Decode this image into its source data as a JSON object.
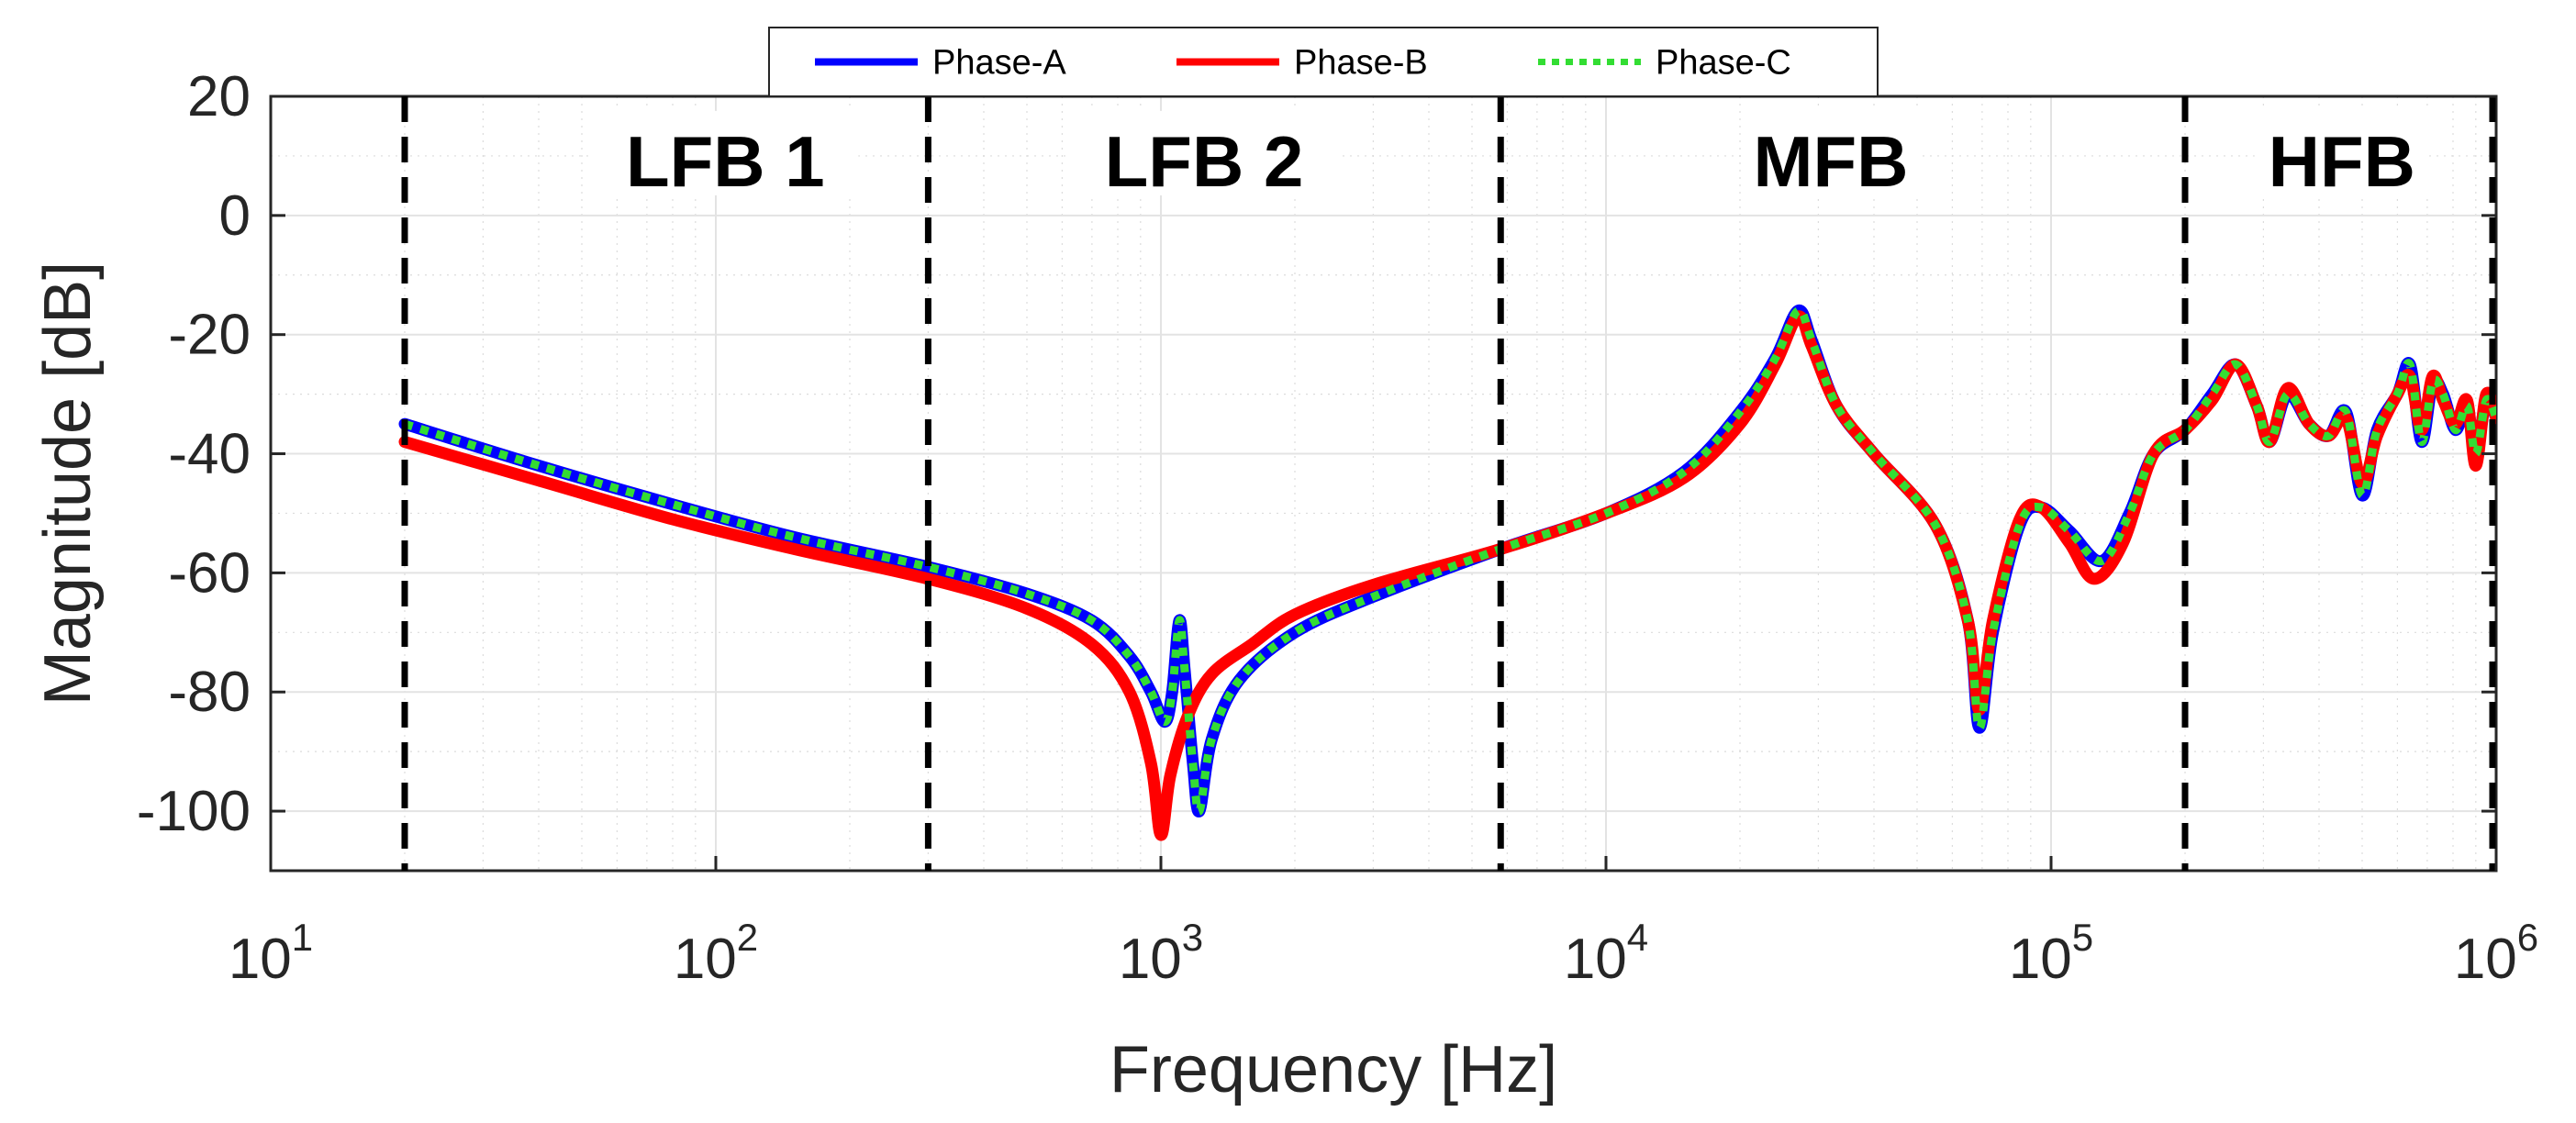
{
  "chart_data": {
    "type": "line",
    "title": "",
    "xlabel": "Frequency [Hz]",
    "ylabel": "Magnitude [dB]",
    "xscale": "log",
    "xlim": [
      10,
      1000000
    ],
    "ylim": [
      -110,
      20
    ],
    "grid": true,
    "legend_position": "top-center",
    "x_ticks": [
      {
        "value": 10,
        "base": "10",
        "exp": "1"
      },
      {
        "value": 100,
        "base": "10",
        "exp": "2"
      },
      {
        "value": 1000,
        "base": "10",
        "exp": "3"
      },
      {
        "value": 10000,
        "base": "10",
        "exp": "4"
      },
      {
        "value": 100000,
        "base": "10",
        "exp": "5"
      },
      {
        "value": 1000000,
        "base": "10",
        "exp": "6"
      }
    ],
    "y_ticks": [
      {
        "value": 20,
        "label": "20"
      },
      {
        "value": 0,
        "label": "0"
      },
      {
        "value": -20,
        "label": "-20"
      },
      {
        "value": -40,
        "label": "-40"
      },
      {
        "value": -60,
        "label": "-60"
      },
      {
        "value": -80,
        "label": "-80"
      },
      {
        "value": -100,
        "label": "-100"
      }
    ],
    "band_boundaries_hz": [
      20,
      300,
      5800,
      200000,
      1000000
    ],
    "bands": [
      {
        "label": "LFB 1",
        "x_center": 105,
        "y": 8
      },
      {
        "label": "LFB 2",
        "x_center": 1250,
        "y": 8
      },
      {
        "label": "MFB",
        "x_center": 32000,
        "y": 8
      },
      {
        "label": "HFB",
        "x_center": 450000,
        "y": 8
      }
    ],
    "series": [
      {
        "name": "Phase-A",
        "color": "#0000ff",
        "style": "solid",
        "points": [
          [
            20,
            -35
          ],
          [
            40,
            -42
          ],
          [
            80,
            -48.5
          ],
          [
            150,
            -54
          ],
          [
            300,
            -59
          ],
          [
            500,
            -63.5
          ],
          [
            700,
            -68
          ],
          [
            850,
            -74
          ],
          [
            950,
            -80
          ],
          [
            1020,
            -85
          ],
          [
            1060,
            -80
          ],
          [
            1100,
            -68
          ],
          [
            1130,
            -76
          ],
          [
            1180,
            -92
          ],
          [
            1220,
            -100
          ],
          [
            1300,
            -88
          ],
          [
            1500,
            -78
          ],
          [
            2000,
            -70
          ],
          [
            3000,
            -64
          ],
          [
            5800,
            -56
          ],
          [
            10000,
            -50
          ],
          [
            15000,
            -43
          ],
          [
            20000,
            -33
          ],
          [
            24000,
            -24
          ],
          [
            27000,
            -16
          ],
          [
            29000,
            -21
          ],
          [
            33000,
            -32
          ],
          [
            40000,
            -40
          ],
          [
            55000,
            -52
          ],
          [
            65000,
            -68
          ],
          [
            69000,
            -86
          ],
          [
            74000,
            -70
          ],
          [
            85000,
            -52
          ],
          [
            95000,
            -49
          ],
          [
            110000,
            -53
          ],
          [
            130000,
            -58
          ],
          [
            150000,
            -50
          ],
          [
            170000,
            -40
          ],
          [
            200000,
            -36
          ],
          [
            230000,
            -30
          ],
          [
            260000,
            -25
          ],
          [
            290000,
            -32
          ],
          [
            310000,
            -38
          ],
          [
            340000,
            -30
          ],
          [
            380000,
            -35
          ],
          [
            420000,
            -37
          ],
          [
            460000,
            -33
          ],
          [
            500000,
            -47
          ],
          [
            540000,
            -36
          ],
          [
            600000,
            -30
          ],
          [
            640000,
            -25
          ],
          [
            680000,
            -38
          ],
          [
            720000,
            -28
          ],
          [
            760000,
            -30
          ],
          [
            810000,
            -36
          ],
          [
            860000,
            -32
          ],
          [
            900000,
            -40
          ],
          [
            950000,
            -31
          ],
          [
            1000000,
            -34
          ]
        ]
      },
      {
        "name": "Phase-B",
        "color": "#ff0000",
        "style": "solid",
        "points": [
          [
            20,
            -38
          ],
          [
            40,
            -44.5
          ],
          [
            80,
            -51
          ],
          [
            150,
            -56
          ],
          [
            300,
            -61
          ],
          [
            500,
            -66
          ],
          [
            700,
            -72
          ],
          [
            850,
            -80
          ],
          [
            950,
            -92
          ],
          [
            1000,
            -104
          ],
          [
            1050,
            -94
          ],
          [
            1150,
            -84
          ],
          [
            1300,
            -77
          ],
          [
            1600,
            -72
          ],
          [
            2000,
            -67
          ],
          [
            3000,
            -62
          ],
          [
            5800,
            -56
          ],
          [
            10000,
            -50
          ],
          [
            15000,
            -44
          ],
          [
            20000,
            -35
          ],
          [
            24000,
            -25
          ],
          [
            27000,
            -17
          ],
          [
            29000,
            -22
          ],
          [
            33000,
            -32
          ],
          [
            40000,
            -40
          ],
          [
            55000,
            -52
          ],
          [
            65000,
            -68
          ],
          [
            69000,
            -83
          ],
          [
            74000,
            -68
          ],
          [
            85000,
            -51
          ],
          [
            95000,
            -49
          ],
          [
            110000,
            -55
          ],
          [
            125000,
            -61
          ],
          [
            145000,
            -55
          ],
          [
            170000,
            -40
          ],
          [
            200000,
            -36
          ],
          [
            230000,
            -31
          ],
          [
            260000,
            -25
          ],
          [
            290000,
            -32
          ],
          [
            310000,
            -38
          ],
          [
            340000,
            -29
          ],
          [
            380000,
            -35
          ],
          [
            420000,
            -37
          ],
          [
            460000,
            -34
          ],
          [
            500000,
            -45
          ],
          [
            540000,
            -37
          ],
          [
            600000,
            -30
          ],
          [
            640000,
            -27
          ],
          [
            680000,
            -36
          ],
          [
            720000,
            -27
          ],
          [
            760000,
            -31
          ],
          [
            810000,
            -35
          ],
          [
            860000,
            -31
          ],
          [
            900000,
            -42
          ],
          [
            950000,
            -30
          ],
          [
            1000000,
            -34
          ]
        ]
      },
      {
        "name": "Phase-C",
        "color": "#33dd33",
        "style": "dotted",
        "points": [
          [
            20,
            -35
          ],
          [
            40,
            -42
          ],
          [
            80,
            -48.5
          ],
          [
            150,
            -54
          ],
          [
            300,
            -59
          ],
          [
            500,
            -63.5
          ],
          [
            700,
            -68
          ],
          [
            850,
            -74
          ],
          [
            950,
            -80
          ],
          [
            1020,
            -85
          ],
          [
            1060,
            -80
          ],
          [
            1100,
            -68
          ],
          [
            1130,
            -76
          ],
          [
            1180,
            -92
          ],
          [
            1220,
            -100
          ],
          [
            1300,
            -88
          ],
          [
            1500,
            -78
          ],
          [
            2000,
            -70
          ],
          [
            3000,
            -64
          ],
          [
            5800,
            -56
          ],
          [
            10000,
            -50
          ],
          [
            15000,
            -43
          ],
          [
            20000,
            -33
          ],
          [
            24000,
            -24
          ],
          [
            27000,
            -16
          ],
          [
            29000,
            -21
          ],
          [
            33000,
            -32
          ],
          [
            40000,
            -40
          ],
          [
            55000,
            -52
          ],
          [
            65000,
            -68
          ],
          [
            69000,
            -86
          ],
          [
            74000,
            -70
          ],
          [
            85000,
            -52
          ],
          [
            95000,
            -49
          ],
          [
            110000,
            -53
          ],
          [
            130000,
            -58
          ],
          [
            150000,
            -50
          ],
          [
            170000,
            -40
          ],
          [
            200000,
            -36
          ],
          [
            230000,
            -30
          ],
          [
            260000,
            -25
          ],
          [
            290000,
            -32
          ],
          [
            310000,
            -38
          ],
          [
            340000,
            -30
          ],
          [
            380000,
            -35
          ],
          [
            420000,
            -37
          ],
          [
            460000,
            -33
          ],
          [
            500000,
            -47
          ],
          [
            540000,
            -36
          ],
          [
            600000,
            -30
          ],
          [
            640000,
            -25
          ],
          [
            680000,
            -38
          ],
          [
            720000,
            -28
          ],
          [
            760000,
            -30
          ],
          [
            810000,
            -36
          ],
          [
            860000,
            -32
          ],
          [
            900000,
            -40
          ],
          [
            950000,
            -31
          ],
          [
            1000000,
            -34
          ]
        ]
      }
    ]
  }
}
